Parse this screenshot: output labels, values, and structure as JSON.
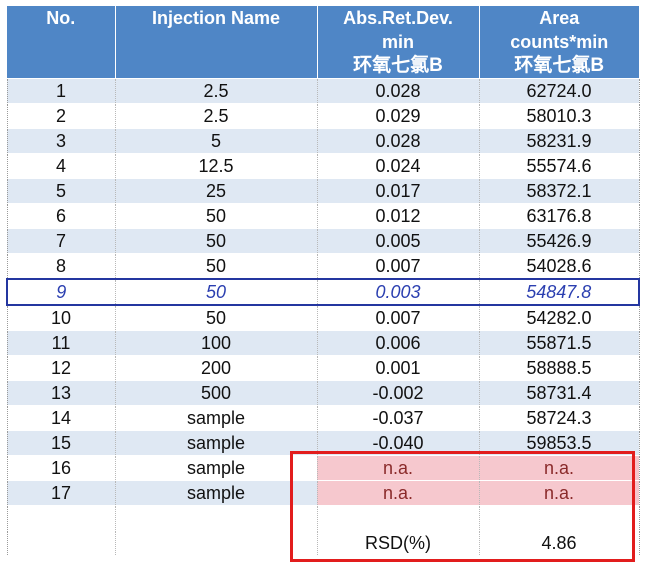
{
  "headers": {
    "row1": [
      "No.",
      "Injection Name",
      "Abs.Ret.Dev.",
      "Area"
    ],
    "row2": [
      "",
      "",
      "min",
      "counts*min"
    ],
    "row3": [
      "",
      "",
      "环氧七氯B",
      "环氧七氯B"
    ]
  },
  "rows": [
    {
      "no": "1",
      "name": "2.5",
      "dev": "0.028",
      "area": "62724.0"
    },
    {
      "no": "2",
      "name": "2.5",
      "dev": "0.029",
      "area": "58010.3"
    },
    {
      "no": "3",
      "name": "5",
      "dev": "0.028",
      "area": "58231.9"
    },
    {
      "no": "4",
      "name": "12.5",
      "dev": "0.024",
      "area": "55574.6"
    },
    {
      "no": "5",
      "name": "25",
      "dev": "0.017",
      "area": "58372.1"
    },
    {
      "no": "6",
      "name": "50",
      "dev": "0.012",
      "area": "63176.8"
    },
    {
      "no": "7",
      "name": "50",
      "dev": "0.005",
      "area": "55426.9"
    },
    {
      "no": "8",
      "name": "50",
      "dev": "0.007",
      "area": "54028.6"
    },
    {
      "no": "9",
      "name": "50",
      "dev": "0.003",
      "area": "54847.8"
    },
    {
      "no": "10",
      "name": "50",
      "dev": "0.007",
      "area": "54282.0"
    },
    {
      "no": "11",
      "name": "100",
      "dev": "0.006",
      "area": "55871.5"
    },
    {
      "no": "12",
      "name": "200",
      "dev": "0.001",
      "area": "58888.5"
    },
    {
      "no": "13",
      "name": "500",
      "dev": "-0.002",
      "area": "58731.4"
    },
    {
      "no": "14",
      "name": "sample",
      "dev": "-0.037",
      "area": "58724.3"
    },
    {
      "no": "15",
      "name": "sample",
      "dev": "-0.040",
      "area": "59853.5"
    },
    {
      "no": "16",
      "name": "sample",
      "dev": "n.a.",
      "area": "n.a."
    },
    {
      "no": "17",
      "name": "sample",
      "dev": "n.a.",
      "area": "n.a."
    }
  ],
  "summary": {
    "label": "RSD(%)",
    "value": "4.86"
  },
  "colors": {
    "header_bg": "#4f86c6",
    "stripe": "#dfe8f3",
    "highlight_text": "#2b3fb0",
    "na_bg": "#f6c8ce",
    "red_box": "#e21d1d"
  }
}
